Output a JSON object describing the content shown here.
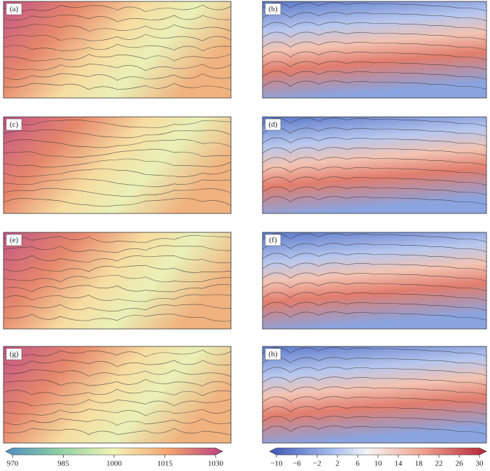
{
  "panels": [
    {
      "label": "(a)"
    },
    {
      "label": "(b)"
    },
    {
      "label": "(c)"
    },
    {
      "label": "(d)"
    },
    {
      "label": "(e)"
    },
    {
      "label": "(f)"
    },
    {
      "label": "(g)"
    },
    {
      "label": "(h)"
    }
  ],
  "colorbars": [
    {
      "lim": [
        970,
        1030
      ],
      "ticks": [
        970,
        985,
        1000,
        1015,
        1030
      ]
    },
    {
      "lim": [
        -10,
        30
      ],
      "ticks": [
        {
          "value": -10,
          "label": "−10"
        },
        {
          "value": -6,
          "label": "−6"
        },
        {
          "value": -2,
          "label": "−2"
        },
        2,
        6,
        10,
        14,
        18,
        22,
        26,
        30
      ]
    }
  ]
}
